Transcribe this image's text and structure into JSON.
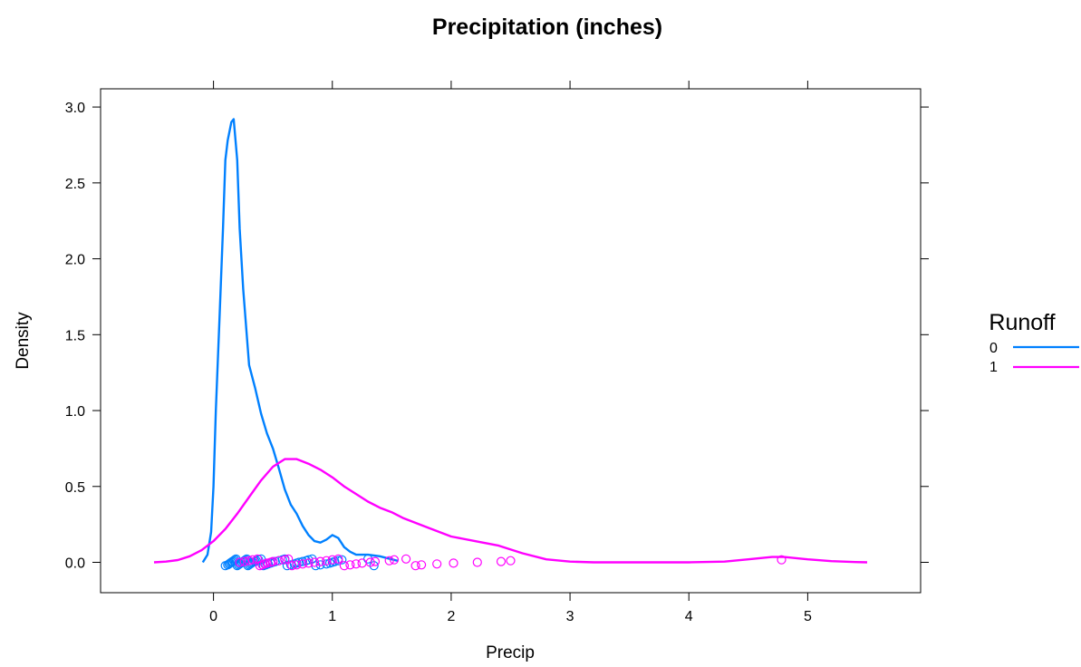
{
  "chart_data": {
    "type": "line",
    "title": "Precipitation (inches)",
    "xlabel": "Precip",
    "ylabel": "Density",
    "xlim": [
      -0.95,
      5.95
    ],
    "ylim": [
      -0.2,
      3.12
    ],
    "x_ticks": [
      0,
      1,
      2,
      3,
      4,
      5
    ],
    "x_tick_labels": [
      "0",
      "1",
      "2",
      "3",
      "4",
      "5"
    ],
    "y_ticks": [
      0.0,
      0.5,
      1.0,
      1.5,
      2.0,
      2.5,
      3.0
    ],
    "y_tick_labels": [
      "0.0",
      "0.5",
      "1.0",
      "1.5",
      "2.0",
      "2.5",
      "3.0"
    ],
    "grid": false,
    "legend": {
      "title": "Runoff",
      "placement": "right",
      "entries": [
        "0",
        "1"
      ]
    },
    "series": [
      {
        "name": "0",
        "color": "#0080ff",
        "density_curve": {
          "x": [
            -0.09,
            -0.05,
            -0.02,
            0.0,
            0.02,
            0.05,
            0.08,
            0.1,
            0.12,
            0.15,
            0.17,
            0.2,
            0.22,
            0.25,
            0.28,
            0.3,
            0.35,
            0.4,
            0.45,
            0.5,
            0.55,
            0.6,
            0.65,
            0.7,
            0.75,
            0.8,
            0.85,
            0.9,
            0.95,
            1.0,
            1.05,
            1.1,
            1.15,
            1.2,
            1.3,
            1.4,
            1.5,
            1.55
          ],
          "y": [
            0.0,
            0.05,
            0.2,
            0.5,
            1.0,
            1.6,
            2.2,
            2.65,
            2.78,
            2.9,
            2.92,
            2.65,
            2.2,
            1.8,
            1.5,
            1.3,
            1.15,
            0.98,
            0.85,
            0.75,
            0.62,
            0.48,
            0.38,
            0.32,
            0.24,
            0.18,
            0.14,
            0.13,
            0.15,
            0.18,
            0.16,
            0.1,
            0.07,
            0.05,
            0.05,
            0.04,
            0.02,
            0.01
          ]
        },
        "points": [
          0.1,
          0.12,
          0.13,
          0.14,
          0.15,
          0.16,
          0.17,
          0.18,
          0.19,
          0.2,
          0.21,
          0.22,
          0.23,
          0.24,
          0.25,
          0.26,
          0.27,
          0.28,
          0.29,
          0.3,
          0.31,
          0.32,
          0.33,
          0.35,
          0.36,
          0.38,
          0.4,
          0.42,
          0.44,
          0.46,
          0.48,
          0.5,
          0.52,
          0.55,
          0.58,
          0.6,
          0.62,
          0.65,
          0.68,
          0.7,
          0.72,
          0.75,
          0.78,
          0.8,
          0.83,
          0.86,
          0.9,
          0.95,
          0.98,
          1.0,
          1.02,
          1.05,
          1.08,
          1.3,
          1.35
        ]
      },
      {
        "name": "1",
        "color": "#ff00ff",
        "density_curve": {
          "x": [
            -0.5,
            -0.4,
            -0.3,
            -0.2,
            -0.1,
            0.0,
            0.1,
            0.2,
            0.3,
            0.4,
            0.5,
            0.6,
            0.7,
            0.8,
            0.9,
            1.0,
            1.1,
            1.2,
            1.3,
            1.4,
            1.5,
            1.6,
            1.8,
            2.0,
            2.2,
            2.4,
            2.6,
            2.8,
            3.0,
            3.2,
            3.5,
            4.0,
            4.3,
            4.5,
            4.7,
            4.8,
            5.0,
            5.2,
            5.4,
            5.5
          ],
          "y": [
            0.0,
            0.005,
            0.015,
            0.04,
            0.08,
            0.14,
            0.22,
            0.32,
            0.43,
            0.54,
            0.63,
            0.68,
            0.68,
            0.65,
            0.61,
            0.56,
            0.5,
            0.45,
            0.4,
            0.36,
            0.33,
            0.29,
            0.23,
            0.17,
            0.14,
            0.11,
            0.06,
            0.02,
            0.005,
            0.0,
            0.0,
            0.0,
            0.005,
            0.02,
            0.035,
            0.035,
            0.02,
            0.008,
            0.002,
            0.0
          ]
        },
        "points": [
          0.22,
          0.26,
          0.3,
          0.33,
          0.37,
          0.39,
          0.41,
          0.43,
          0.45,
          0.48,
          0.5,
          0.55,
          0.6,
          0.63,
          0.66,
          0.7,
          0.75,
          0.8,
          0.85,
          0.9,
          0.95,
          1.0,
          1.05,
          1.1,
          1.15,
          1.2,
          1.25,
          1.32,
          1.36,
          1.48,
          1.52,
          1.62,
          1.7,
          1.75,
          1.88,
          2.02,
          2.22,
          2.42,
          2.5,
          4.78
        ]
      }
    ]
  }
}
